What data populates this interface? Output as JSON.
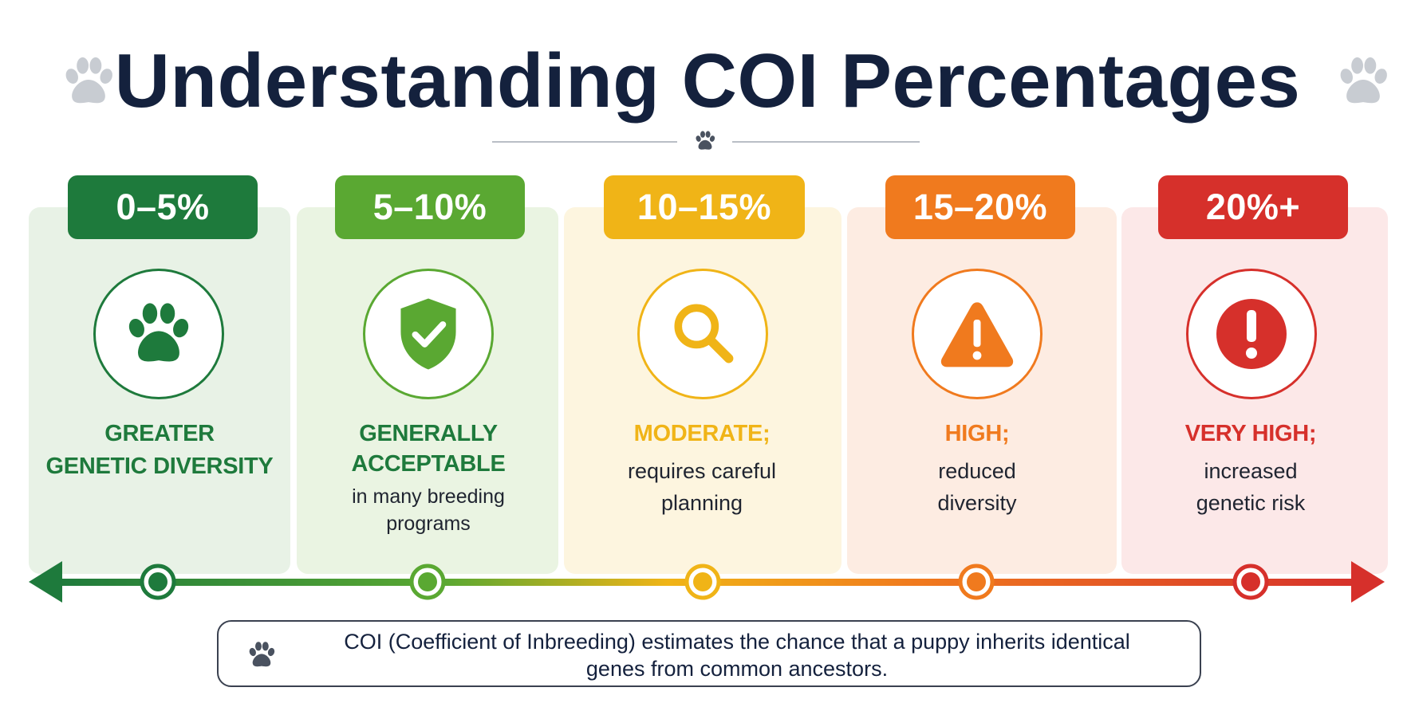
{
  "title": "Understanding COI Percentages",
  "colors": {
    "green": "#1e7a3c",
    "lightgreen": "#5aa832",
    "yellow": "#f0b417",
    "orange": "#f07a1e",
    "red": "#d6302b",
    "navy": "#14213d",
    "paw_gray": "#c8ccd2"
  },
  "levels": [
    {
      "range": "0–5%",
      "heading": [
        "GREATER",
        "GENETIC DIVERSITY"
      ],
      "note": [],
      "icon": "paw-icon",
      "color": "#1e7a3c"
    },
    {
      "range": "5–10%",
      "heading": [
        "GENERALLY",
        "ACCEPTABLE"
      ],
      "note": [
        "in many breeding",
        "programs"
      ],
      "icon": "shield-check-icon",
      "color": "#5aa832"
    },
    {
      "range": "10–15%",
      "heading": [
        "MODERATE;"
      ],
      "note": [
        "requires careful",
        "planning"
      ],
      "icon": "magnifier-icon",
      "color": "#f0b417"
    },
    {
      "range": "15–20%",
      "heading": [
        "HIGH;"
      ],
      "note": [
        "reduced",
        "diversity"
      ],
      "icon": "warning-triangle-icon",
      "color": "#f07a1e"
    },
    {
      "range": "20%+",
      "heading": [
        "VERY HIGH;"
      ],
      "note": [
        "increased",
        "genetic risk"
      ],
      "icon": "alert-circle-icon",
      "color": "#d6302b"
    }
  ],
  "footnote": {
    "line1": "COI (Coefficient of Inbreeding) estimates the chance that a puppy inherits identical",
    "line2": "genes from common ancestors."
  }
}
